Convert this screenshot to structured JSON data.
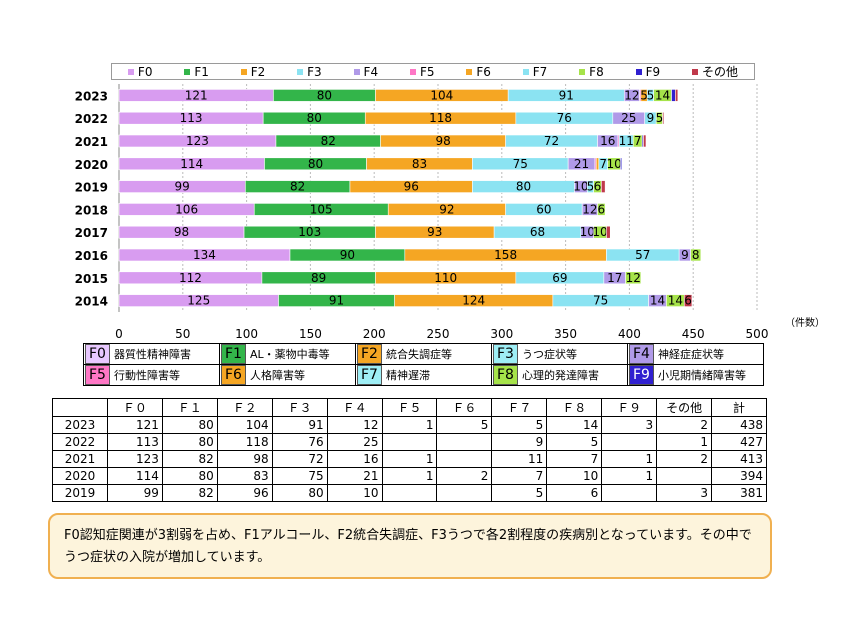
{
  "chart_data": {
    "type": "bar",
    "orientation": "horizontal",
    "stacked": true,
    "categories": [
      "2023",
      "2022",
      "2021",
      "2020",
      "2019",
      "2018",
      "2017",
      "2016",
      "2015",
      "2014"
    ],
    "series": [
      {
        "name": "F0",
        "color": "#d89cf0",
        "values": [
          121,
          113,
          123,
          114,
          99,
          106,
          98,
          134,
          112,
          125
        ]
      },
      {
        "name": "F1",
        "color": "#33b54a",
        "values": [
          80,
          80,
          82,
          80,
          82,
          105,
          103,
          90,
          89,
          91
        ]
      },
      {
        "name": "F2",
        "color": "#f5a623",
        "values": [
          104,
          118,
          98,
          83,
          96,
          92,
          93,
          158,
          110,
          124
        ]
      },
      {
        "name": "F3",
        "color": "#8be3f2",
        "values": [
          91,
          76,
          72,
          75,
          80,
          60,
          68,
          57,
          69,
          75
        ]
      },
      {
        "name": "F4",
        "color": "#b09ae8",
        "values": [
          12,
          25,
          16,
          21,
          10,
          12,
          10,
          9,
          17,
          14
        ]
      },
      {
        "name": "F5",
        "color": "#ff77c6",
        "values": [
          1,
          0,
          1,
          1,
          0,
          0,
          0,
          0,
          0,
          0
        ]
      },
      {
        "name": "F6",
        "color": "#f5a623",
        "values": [
          5,
          0,
          0,
          2,
          0,
          0,
          0,
          0,
          0,
          0
        ]
      },
      {
        "name": "F7",
        "color": "#8be3f2",
        "values": [
          5,
          9,
          11,
          7,
          5,
          0,
          0,
          0,
          0,
          0
        ]
      },
      {
        "name": "F8",
        "color": "#a6e34a",
        "values": [
          14,
          5,
          7,
          10,
          6,
          6,
          10,
          8,
          12,
          14
        ]
      },
      {
        "name": "F9",
        "color": "#3020d0",
        "values": [
          3,
          0,
          1,
          1,
          0,
          0,
          0,
          0,
          0,
          0
        ]
      },
      {
        "name": "その他",
        "color": "#c0394b",
        "values": [
          2,
          1,
          2,
          0,
          3,
          0,
          3,
          0,
          0,
          6
        ]
      }
    ],
    "xlim": [
      0,
      500
    ],
    "xticks": [
      "0",
      "50",
      "100",
      "150",
      "200",
      "250",
      "300",
      "350",
      "400",
      "450",
      "500"
    ],
    "xunit": "（件数）",
    "label_threshold": 5,
    "legend_position": "top",
    "grid": "vertical-dashed"
  },
  "codes_table": [
    [
      {
        "code": "F0",
        "label": "器質性精神障害",
        "bg": "#e8c8ff",
        "fg": "#000"
      },
      {
        "code": "F1",
        "label": "AL・薬物中毒等",
        "bg": "#33b54a",
        "fg": "#000"
      },
      {
        "code": "F2",
        "label": "統合失調症等",
        "bg": "#f5a623",
        "fg": "#000"
      },
      {
        "code": "F3",
        "label": "うつ症状等",
        "bg": "#9eeef5",
        "fg": "#000"
      },
      {
        "code": "F4",
        "label": "神経症症状等",
        "bg": "#b09ae8",
        "fg": "#000"
      }
    ],
    [
      {
        "code": "F5",
        "label": "行動性障害等",
        "bg": "#ff77c6",
        "fg": "#000"
      },
      {
        "code": "F6",
        "label": "人格障害等",
        "bg": "#f5a623",
        "fg": "#000"
      },
      {
        "code": "F7",
        "label": "精神遅滞",
        "bg": "#9eeef5",
        "fg": "#000"
      },
      {
        "code": "F8",
        "label": "心理的発達障害",
        "bg": "#a6e34a",
        "fg": "#000"
      },
      {
        "code": "F9",
        "label": "小児期情緒障害等",
        "bg": "#3020d0",
        "fg": "#fff"
      }
    ]
  ],
  "data_table": {
    "headers": [
      "",
      "Ｆ０",
      "Ｆ１",
      "Ｆ２",
      "Ｆ３",
      "Ｆ４",
      "Ｆ５",
      "Ｆ６",
      "Ｆ７",
      "Ｆ８",
      "Ｆ９",
      "その他",
      "計"
    ],
    "rows": [
      [
        "2023",
        "121",
        "80",
        "104",
        "91",
        "12",
        "1",
        "5",
        "5",
        "14",
        "3",
        "2",
        "438"
      ],
      [
        "2022",
        "113",
        "80",
        "118",
        "76",
        "25",
        "",
        "",
        "9",
        "5",
        "",
        "1",
        "427"
      ],
      [
        "2021",
        "123",
        "82",
        "98",
        "72",
        "16",
        "1",
        "",
        "11",
        "7",
        "1",
        "2",
        "413"
      ],
      [
        "2020",
        "114",
        "80",
        "83",
        "75",
        "21",
        "1",
        "2",
        "7",
        "10",
        "1",
        "",
        "394"
      ],
      [
        "2019",
        "99",
        "82",
        "96",
        "80",
        "10",
        "",
        "",
        "5",
        "6",
        "",
        "3",
        "381"
      ]
    ]
  },
  "note": "F0認知症関連が3割弱を占め、F1アルコール、F2統合失調症、F3うつで各2割程度の疾病別となっています。その中でうつ症状の入院が増加しています。"
}
